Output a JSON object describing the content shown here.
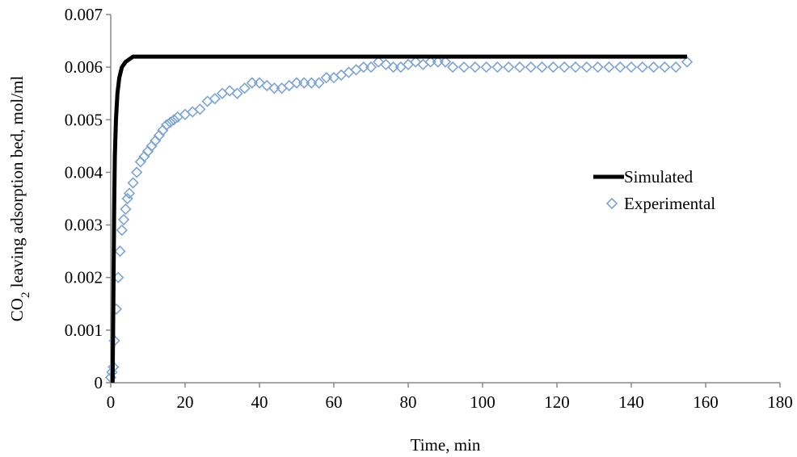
{
  "chart_data": {
    "type": "scatter",
    "xlabel": "Time, min",
    "ylabel_main": "CO",
    "ylabel_sub": "2",
    "ylabel_rest": " leaving adsorption bed, mol/ml",
    "xlim": [
      0,
      180
    ],
    "ylim": [
      0,
      0.007
    ],
    "x_ticks": [
      "0",
      "20",
      "40",
      "60",
      "80",
      "100",
      "120",
      "140",
      "160",
      "180"
    ],
    "y_ticks": [
      "0",
      "0.001",
      "0.002",
      "0.003",
      "0.004",
      "0.005",
      "0.006",
      "0.007"
    ],
    "grid": false,
    "legend_position": "right",
    "series": [
      {
        "name": "Simulated",
        "kind": "line",
        "color": "#000000",
        "points": [
          [
            0.5,
            0
          ],
          [
            0.7,
            0.0015
          ],
          [
            0.9,
            0.0032
          ],
          [
            1.1,
            0.0043
          ],
          [
            1.4,
            0.005
          ],
          [
            1.8,
            0.0055
          ],
          [
            2.3,
            0.0058
          ],
          [
            3,
            0.006
          ],
          [
            4,
            0.0061
          ],
          [
            5,
            0.00615
          ],
          [
            6,
            0.0062
          ],
          [
            155,
            0.0062
          ]
        ]
      },
      {
        "name": "Experimental",
        "kind": "scatter",
        "marker": "diamond-open",
        "color": "#7ba3d6",
        "points": [
          [
            0,
            0.0001
          ],
          [
            0.3,
            0.0002
          ],
          [
            0.7,
            0.0003
          ],
          [
            1,
            0.0008
          ],
          [
            1.5,
            0.0014
          ],
          [
            2,
            0.002
          ],
          [
            2.5,
            0.0025
          ],
          [
            3,
            0.0029
          ],
          [
            3.5,
            0.0031
          ],
          [
            4,
            0.0033
          ],
          [
            4.5,
            0.0035
          ],
          [
            5,
            0.0036
          ],
          [
            6,
            0.0038
          ],
          [
            7,
            0.004
          ],
          [
            8,
            0.0042
          ],
          [
            9,
            0.0043
          ],
          [
            10,
            0.0044
          ],
          [
            11,
            0.0045
          ],
          [
            12,
            0.0046
          ],
          [
            13,
            0.0047
          ],
          [
            14,
            0.0048
          ],
          [
            15,
            0.0049
          ],
          [
            16,
            0.00495
          ],
          [
            17,
            0.005
          ],
          [
            18,
            0.00505
          ],
          [
            20,
            0.0051
          ],
          [
            22,
            0.00515
          ],
          [
            24,
            0.0052
          ],
          [
            26,
            0.00535
          ],
          [
            28,
            0.0054
          ],
          [
            30,
            0.0055
          ],
          [
            32,
            0.00555
          ],
          [
            34,
            0.0055
          ],
          [
            36,
            0.0056
          ],
          [
            38,
            0.0057
          ],
          [
            40,
            0.0057
          ],
          [
            42,
            0.00565
          ],
          [
            44,
            0.0056
          ],
          [
            46,
            0.0056
          ],
          [
            48,
            0.00565
          ],
          [
            50,
            0.0057
          ],
          [
            52,
            0.0057
          ],
          [
            54,
            0.0057
          ],
          [
            56,
            0.0057
          ],
          [
            58,
            0.0058
          ],
          [
            60,
            0.0058
          ],
          [
            62,
            0.00585
          ],
          [
            64,
            0.0059
          ],
          [
            66,
            0.00595
          ],
          [
            68,
            0.006
          ],
          [
            70,
            0.006
          ],
          [
            72,
            0.0061
          ],
          [
            74,
            0.00605
          ],
          [
            76,
            0.006
          ],
          [
            78,
            0.006
          ],
          [
            80,
            0.00605
          ],
          [
            82,
            0.0061
          ],
          [
            84,
            0.00605
          ],
          [
            86,
            0.0061
          ],
          [
            88,
            0.0061
          ],
          [
            90,
            0.0061
          ],
          [
            92,
            0.006
          ],
          [
            95,
            0.006
          ],
          [
            98,
            0.006
          ],
          [
            101,
            0.006
          ],
          [
            104,
            0.006
          ],
          [
            107,
            0.006
          ],
          [
            110,
            0.006
          ],
          [
            113,
            0.006
          ],
          [
            116,
            0.006
          ],
          [
            119,
            0.006
          ],
          [
            122,
            0.006
          ],
          [
            125,
            0.006
          ],
          [
            128,
            0.006
          ],
          [
            131,
            0.006
          ],
          [
            134,
            0.006
          ],
          [
            137,
            0.006
          ],
          [
            140,
            0.006
          ],
          [
            143,
            0.006
          ],
          [
            146,
            0.006
          ],
          [
            149,
            0.006
          ],
          [
            152,
            0.006
          ],
          [
            155,
            0.0061
          ]
        ]
      }
    ]
  }
}
